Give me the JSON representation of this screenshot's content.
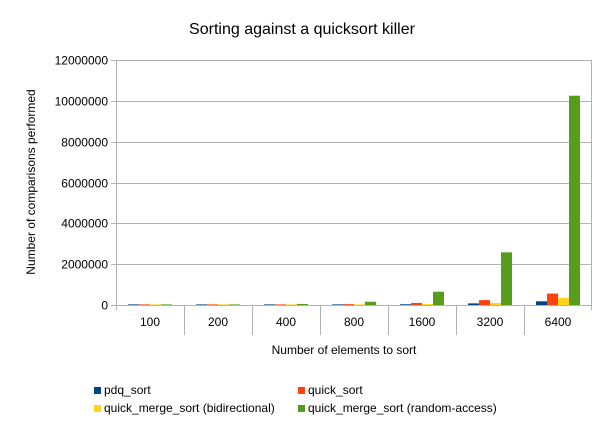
{
  "chart_data": {
    "type": "bar",
    "title": "Sorting against a quicksort killer",
    "xlabel": "Number of elements to sort",
    "ylabel": "Number of comparisons  performed",
    "categories": [
      "100",
      "200",
      "400",
      "800",
      "1600",
      "3200",
      "6400"
    ],
    "ylim": [
      0,
      12000000
    ],
    "yticks": [
      0,
      2000000,
      4000000,
      6000000,
      8000000,
      10000000,
      12000000
    ],
    "ytick_labels": [
      "0",
      "2000000",
      "4000000",
      "6000000",
      "8000000",
      "10000000",
      "12000000"
    ],
    "grid": true,
    "legend_position": "bottom",
    "series": [
      {
        "name": "pdq_sort",
        "color": "#004586",
        "values": [
          1400,
          3200,
          7000,
          16000,
          36000,
          80000,
          180000
        ]
      },
      {
        "name": "quick_sort",
        "color": "#ff420e",
        "values": [
          2500,
          6500,
          17000,
          43000,
          100000,
          240000,
          560000
        ]
      },
      {
        "name": "quick_merge_sort (bidirectional)",
        "color": "#ffd320",
        "values": [
          1500,
          3500,
          8000,
          18000,
          45000,
          100000,
          350000
        ]
      },
      {
        "name": "quick_merge_sort (random-access)",
        "color": "#579d1c",
        "values": [
          9000,
          22000,
          50000,
          160000,
          650000,
          2580000,
          10250000
        ]
      }
    ]
  }
}
